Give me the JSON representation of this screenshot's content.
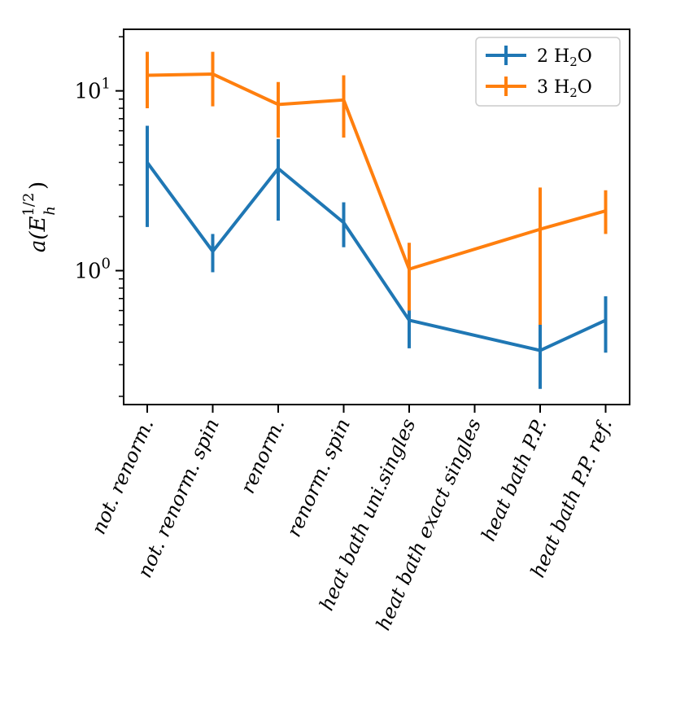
{
  "chart_data": {
    "type": "line",
    "yscale": "log",
    "ylim": [
      0.18,
      22
    ],
    "ylabel_main": "a(E",
    "ylabel_sub": "h",
    "ylabel_sup": "1/2",
    "ylabel_close": ")",
    "y_major_ticks": [
      {
        "value": 1,
        "base": "10",
        "exp": "0"
      },
      {
        "value": 10,
        "base": "10",
        "exp": "1"
      }
    ],
    "y_minor_ticks": [
      0.2,
      0.3,
      0.4,
      0.5,
      0.6,
      0.7,
      0.8,
      0.9,
      2,
      3,
      4,
      5,
      6,
      7,
      8,
      9,
      20
    ],
    "categories": [
      "not. renorm.",
      "not. renorm. spin",
      "renorm.",
      "renorm. spin",
      "heat bath uni.singles",
      "heat bath exact singles",
      "heat bath P.P.",
      "heat bath P.P. ref."
    ],
    "series": [
      {
        "name": "2 H2O",
        "legend_prefix": "2 H",
        "legend_sub": "2",
        "legend_suffix": "O",
        "color": "#1f77b4",
        "values": [
          4.0,
          1.28,
          3.7,
          1.85,
          0.53,
          null,
          0.36,
          0.53
        ],
        "err_low": [
          1.75,
          0.98,
          1.9,
          1.35,
          0.37,
          null,
          0.22,
          0.35
        ],
        "err_high": [
          6.4,
          1.6,
          5.4,
          2.4,
          0.69,
          null,
          0.5,
          0.72
        ]
      },
      {
        "name": "3 H2O",
        "legend_prefix": "3 H",
        "legend_sub": "2",
        "legend_suffix": "O",
        "color": "#ff7f0e",
        "values": [
          12.2,
          12.4,
          8.4,
          8.9,
          1.02,
          null,
          1.7,
          2.15
        ],
        "err_low": [
          8.0,
          8.2,
          5.5,
          5.5,
          0.6,
          null,
          0.5,
          1.6
        ],
        "err_high": [
          16.5,
          16.5,
          11.2,
          12.2,
          1.43,
          null,
          2.9,
          2.8
        ]
      }
    ]
  }
}
